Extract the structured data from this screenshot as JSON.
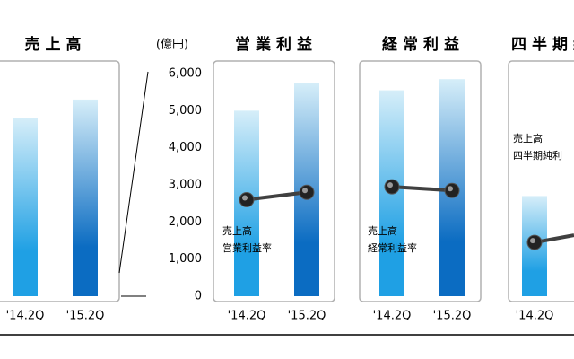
{
  "chart_data": [
    {
      "type": "bar",
      "title": "売上高",
      "categories": [
        "'14.2Q",
        "'15.2Q"
      ],
      "ylim": [
        0,
        6000
      ],
      "series": [
        {
          "type": "bar",
          "colors": [
            "#1fa0e4",
            "#0b6cc2"
          ],
          "values": [
            4800,
            5300
          ]
        }
      ]
    },
    {
      "type": "bar",
      "title": "営業利益",
      "categories": [
        "'14.2Q",
        "'15.2Q"
      ],
      "ylim": [
        0,
        6000
      ],
      "y_label": "(億円)",
      "yticks": [
        0,
        {
          "value": 1000,
          "label": "1,000"
        },
        {
          "value": 2000,
          "label": "2,000"
        },
        {
          "value": 3000,
          "label": "3,000"
        },
        {
          "value": 4000,
          "label": "4,000"
        },
        {
          "value": 5000,
          "label": "5,000"
        },
        {
          "value": 6000,
          "label": "6,000"
        }
      ],
      "annotation_lines": [
        "売上高",
        "営業利益率"
      ],
      "series": [
        {
          "type": "bar",
          "colors": [
            "#1fa0e4",
            "#0b6cc2"
          ],
          "values": [
            5000,
            5750
          ]
        },
        {
          "type": "line",
          "color": "#404040",
          "values": [
            2600,
            2800
          ]
        }
      ]
    },
    {
      "type": "bar",
      "title": "経常利益",
      "categories": [
        "'14.2Q",
        "'15.2Q"
      ],
      "ylim": [
        0,
        6000
      ],
      "annotation_lines": [
        "売上高",
        "経常利益率"
      ],
      "series": [
        {
          "type": "bar",
          "colors": [
            "#1fa0e4",
            "#0b6cc2"
          ],
          "values": [
            5550,
            5850
          ]
        },
        {
          "type": "line",
          "color": "#404040",
          "values": [
            2950,
            2850
          ]
        }
      ]
    },
    {
      "type": "bar",
      "title": "四半期純",
      "categories": [
        "'14.2Q"
      ],
      "ylim": [
        0,
        6000
      ],
      "annotation_lines": [
        "売上高",
        "四半期純利"
      ],
      "series": [
        {
          "type": "bar",
          "colors": [
            "#1fa0e4"
          ],
          "values": [
            2700
          ]
        },
        {
          "type": "line",
          "color": "#404040",
          "values": [
            1450
          ]
        }
      ]
    }
  ]
}
